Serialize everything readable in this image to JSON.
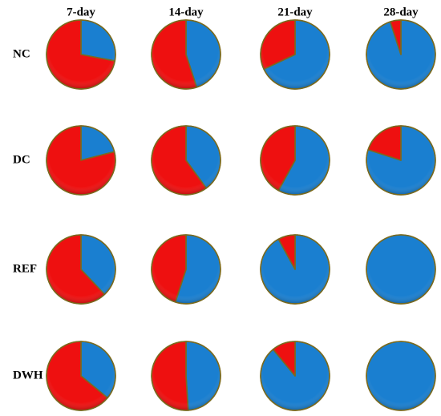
{
  "chart_data": {
    "type": "pie",
    "columns": [
      "7-day",
      "14-day",
      "21-day",
      "28-day"
    ],
    "rows": [
      {
        "label": "NC",
        "values": [
          [
            28,
            72
          ],
          [
            45,
            55
          ],
          [
            68,
            32
          ],
          [
            95,
            5
          ]
        ]
      },
      {
        "label": "DC",
        "values": [
          [
            21,
            79
          ],
          [
            40,
            60
          ],
          [
            58,
            42
          ],
          [
            80,
            20
          ]
        ]
      },
      {
        "label": "REF",
        "values": [
          [
            38,
            62
          ],
          [
            55,
            45
          ],
          [
            92,
            8
          ],
          [
            100,
            0
          ]
        ]
      },
      {
        "label": "DWH",
        "values": [
          [
            36,
            64
          ],
          [
            49,
            51
          ],
          [
            89,
            11
          ],
          [
            100,
            0
          ]
        ]
      }
    ],
    "slice_colors": [
      "#1a7fd0",
      "#ee1010"
    ],
    "outline_color": "#7a6a1e"
  }
}
